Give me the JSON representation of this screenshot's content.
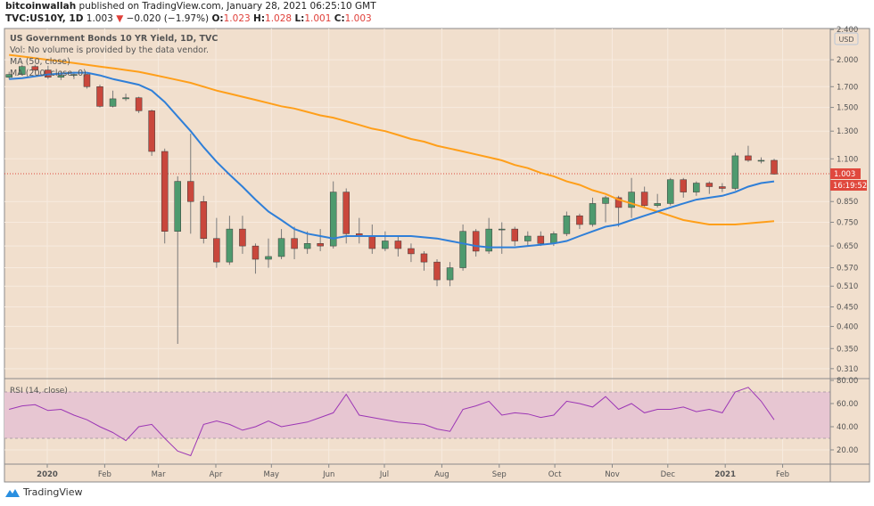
{
  "header": {
    "author": "bitcoinwallah",
    "published": "published on TradingView.com, January 28, 2021 06:25:10 GMT",
    "symbol": "TVC:US10Y, 1D",
    "last": "1.003",
    "change": "−0.020 (−1.97%)",
    "o_label": "O:",
    "o": "1.023",
    "h_label": "H:",
    "h": "1.028",
    "l_label": "L:",
    "l": "1.001",
    "c_label": "C:",
    "c": "1.003"
  },
  "legend": {
    "title": "US Government Bonds 10 YR Yield, 1D, TVC",
    "vol": "Vol: No volume is provided by the data vendor.",
    "ma50": "MA (50, close)",
    "ma200": "MA (200, close, 0)",
    "rsi": "RSI (14, close)"
  },
  "price_axis": {
    "currency": "USD",
    "last_label": "1.003",
    "countdown": "16:19:52"
  },
  "colors": {
    "background": "#f1dfcd",
    "up": "#4e9a6e",
    "down": "#c9473c",
    "ma50": "#2f7fd8",
    "ma200": "#ff9f1a",
    "rsi": "#9c36b5",
    "rsi_band": "#e7c6d2",
    "last_price": "#e0483d"
  },
  "footer": {
    "brand": "TradingView"
  },
  "chart_data": [
    {
      "type": "candlestick",
      "title": "US Government Bonds 10 YR Yield, 1D, TVC",
      "y_scale": "log",
      "ylim": [
        0.3,
        2.45
      ],
      "y_ticks": [
        "2.400",
        "2.000",
        "1.700",
        "1.500",
        "1.300",
        "1.100",
        "0.850",
        "0.750",
        "0.650",
        "0.570",
        "0.510",
        "0.450",
        "0.400",
        "0.350",
        "0.310"
      ],
      "x_ticks": [
        {
          "label": "2020",
          "date": "2020-01-01"
        },
        {
          "label": "Feb",
          "date": "2020-02-01"
        },
        {
          "label": "Mar",
          "date": "2020-03-01"
        },
        {
          "label": "Apr",
          "date": "2020-04-01"
        },
        {
          "label": "May",
          "date": "2020-05-01"
        },
        {
          "label": "Jun",
          "date": "2020-06-01"
        },
        {
          "label": "Jul",
          "date": "2020-07-01"
        },
        {
          "label": "Aug",
          "date": "2020-08-01"
        },
        {
          "label": "Sep",
          "date": "2020-09-01"
        },
        {
          "label": "Oct",
          "date": "2020-10-01"
        },
        {
          "label": "Nov",
          "date": "2020-11-01"
        },
        {
          "label": "Dec",
          "date": "2020-12-01"
        },
        {
          "label": "2021",
          "date": "2021-01-01"
        },
        {
          "label": "Feb",
          "date": "2021-02-01"
        }
      ],
      "grid": true,
      "last_price": 1.003,
      "ohlc": [
        [
          "2019-12-09",
          1.8,
          1.86,
          1.78,
          1.83
        ],
        [
          "2019-12-16",
          1.83,
          1.94,
          1.82,
          1.92
        ],
        [
          "2019-12-23",
          1.92,
          1.94,
          1.87,
          1.88
        ],
        [
          "2019-12-30",
          1.88,
          1.93,
          1.78,
          1.8
        ],
        [
          "2020-01-06",
          1.8,
          1.87,
          1.77,
          1.82
        ],
        [
          "2020-01-13",
          1.82,
          1.86,
          1.78,
          1.83
        ],
        [
          "2020-01-20",
          1.83,
          1.84,
          1.68,
          1.7
        ],
        [
          "2020-01-27",
          1.7,
          1.72,
          1.5,
          1.51
        ],
        [
          "2020-02-03",
          1.51,
          1.66,
          1.5,
          1.58
        ],
        [
          "2020-02-10",
          1.58,
          1.63,
          1.56,
          1.59
        ],
        [
          "2020-02-17",
          1.59,
          1.6,
          1.45,
          1.47
        ],
        [
          "2020-02-24",
          1.47,
          1.48,
          1.12,
          1.15
        ],
        [
          "2020-03-02",
          1.15,
          1.17,
          0.66,
          0.71
        ],
        [
          "2020-03-09",
          0.71,
          0.99,
          0.36,
          0.96
        ],
        [
          "2020-03-16",
          0.96,
          1.28,
          0.7,
          0.85
        ],
        [
          "2020-03-23",
          0.85,
          0.88,
          0.66,
          0.68
        ],
        [
          "2020-03-30",
          0.68,
          0.77,
          0.57,
          0.59
        ],
        [
          "2020-04-06",
          0.59,
          0.78,
          0.58,
          0.72
        ],
        [
          "2020-04-13",
          0.72,
          0.78,
          0.62,
          0.65
        ],
        [
          "2020-04-20",
          0.65,
          0.66,
          0.55,
          0.6
        ],
        [
          "2020-04-27",
          0.6,
          0.68,
          0.57,
          0.61
        ],
        [
          "2020-05-04",
          0.61,
          0.72,
          0.6,
          0.68
        ],
        [
          "2020-05-11",
          0.68,
          0.73,
          0.6,
          0.64
        ],
        [
          "2020-05-18",
          0.64,
          0.71,
          0.62,
          0.66
        ],
        [
          "2020-05-25",
          0.66,
          0.72,
          0.63,
          0.65
        ],
        [
          "2020-06-01",
          0.65,
          0.96,
          0.64,
          0.9
        ],
        [
          "2020-06-08",
          0.9,
          0.92,
          0.66,
          0.7
        ],
        [
          "2020-06-15",
          0.7,
          0.77,
          0.66,
          0.69
        ],
        [
          "2020-06-22",
          0.69,
          0.74,
          0.62,
          0.64
        ],
        [
          "2020-06-29",
          0.64,
          0.71,
          0.63,
          0.67
        ],
        [
          "2020-07-06",
          0.67,
          0.69,
          0.61,
          0.64
        ],
        [
          "2020-07-13",
          0.64,
          0.66,
          0.59,
          0.62
        ],
        [
          "2020-07-20",
          0.62,
          0.63,
          0.56,
          0.59
        ],
        [
          "2020-07-27",
          0.59,
          0.6,
          0.51,
          0.53
        ],
        [
          "2020-08-03",
          0.53,
          0.59,
          0.51,
          0.57
        ],
        [
          "2020-08-10",
          0.57,
          0.74,
          0.56,
          0.71
        ],
        [
          "2020-08-17",
          0.71,
          0.72,
          0.61,
          0.63
        ],
        [
          "2020-08-24",
          0.63,
          0.77,
          0.62,
          0.72
        ],
        [
          "2020-08-31",
          0.72,
          0.75,
          0.62,
          0.72
        ],
        [
          "2020-09-07",
          0.72,
          0.73,
          0.65,
          0.67
        ],
        [
          "2020-09-14",
          0.67,
          0.71,
          0.65,
          0.69
        ],
        [
          "2020-09-21",
          0.69,
          0.71,
          0.65,
          0.66
        ],
        [
          "2020-09-28",
          0.66,
          0.71,
          0.65,
          0.7
        ],
        [
          "2020-10-05",
          0.7,
          0.8,
          0.69,
          0.78
        ],
        [
          "2020-10-12",
          0.78,
          0.79,
          0.72,
          0.74
        ],
        [
          "2020-10-19",
          0.74,
          0.87,
          0.73,
          0.84
        ],
        [
          "2020-10-26",
          0.84,
          0.88,
          0.75,
          0.87
        ],
        [
          "2020-11-02",
          0.87,
          0.88,
          0.73,
          0.82
        ],
        [
          "2020-11-09",
          0.82,
          0.98,
          0.77,
          0.9
        ],
        [
          "2020-11-16",
          0.9,
          0.93,
          0.82,
          0.83
        ],
        [
          "2020-11-23",
          0.83,
          0.89,
          0.82,
          0.84
        ],
        [
          "2020-11-30",
          0.84,
          0.98,
          0.83,
          0.97
        ],
        [
          "2020-12-07",
          0.97,
          0.98,
          0.87,
          0.9
        ],
        [
          "2020-12-14",
          0.9,
          0.96,
          0.88,
          0.95
        ],
        [
          "2020-12-21",
          0.95,
          0.96,
          0.89,
          0.93
        ],
        [
          "2020-12-28",
          0.93,
          0.95,
          0.9,
          0.92
        ],
        [
          "2021-01-04",
          0.92,
          1.14,
          0.91,
          1.12
        ],
        [
          "2021-01-11",
          1.12,
          1.19,
          1.08,
          1.09
        ],
        [
          "2021-01-18",
          1.09,
          1.11,
          1.07,
          1.09
        ],
        [
          "2021-01-25",
          1.09,
          1.1,
          1.0,
          1.003
        ]
      ],
      "series": [
        {
          "name": "MA (50, close)",
          "values": [
            1.78,
            1.79,
            1.81,
            1.83,
            1.84,
            1.85,
            1.85,
            1.82,
            1.78,
            1.75,
            1.72,
            1.66,
            1.55,
            1.42,
            1.3,
            1.18,
            1.08,
            1.0,
            0.93,
            0.86,
            0.8,
            0.76,
            0.72,
            0.7,
            0.69,
            0.68,
            0.69,
            0.69,
            0.69,
            0.69,
            0.69,
            0.69,
            0.685,
            0.68,
            0.67,
            0.66,
            0.65,
            0.645,
            0.645,
            0.645,
            0.65,
            0.655,
            0.66,
            0.67,
            0.69,
            0.71,
            0.73,
            0.74,
            0.76,
            0.78,
            0.8,
            0.82,
            0.84,
            0.86,
            0.87,
            0.88,
            0.9,
            0.93,
            0.95,
            0.96
          ]
        },
        {
          "name": "MA (200, close, 0)",
          "values": [
            2.06,
            2.04,
            2.02,
            2.0,
            1.98,
            1.96,
            1.94,
            1.92,
            1.9,
            1.88,
            1.86,
            1.83,
            1.8,
            1.77,
            1.74,
            1.7,
            1.66,
            1.63,
            1.6,
            1.57,
            1.54,
            1.51,
            1.49,
            1.46,
            1.43,
            1.41,
            1.38,
            1.35,
            1.32,
            1.3,
            1.27,
            1.24,
            1.22,
            1.19,
            1.17,
            1.15,
            1.13,
            1.11,
            1.09,
            1.06,
            1.04,
            1.01,
            0.99,
            0.96,
            0.94,
            0.91,
            0.89,
            0.86,
            0.84,
            0.82,
            0.8,
            0.78,
            0.76,
            0.75,
            0.74,
            0.74,
            0.74,
            0.745,
            0.75,
            0.755
          ]
        }
      ]
    },
    {
      "type": "line",
      "title": "RSI (14, close)",
      "ylim": [
        0,
        85
      ],
      "y_ticks": [
        "80.00",
        "60.00",
        "40.00",
        "20.00"
      ],
      "band": [
        30,
        70
      ],
      "values": [
        55,
        58,
        59,
        54,
        55,
        50,
        46,
        40,
        35,
        28,
        40,
        42,
        30,
        19,
        15,
        42,
        45,
        42,
        37,
        40,
        45,
        40,
        42,
        44,
        48,
        52,
        68,
        50,
        48,
        46,
        44,
        43,
        42,
        38,
        36,
        55,
        58,
        62,
        50,
        52,
        51,
        48,
        50,
        62,
        60,
        57,
        66,
        55,
        60,
        52,
        55,
        55,
        57,
        53,
        55,
        52,
        70,
        74,
        62,
        46
      ]
    }
  ]
}
